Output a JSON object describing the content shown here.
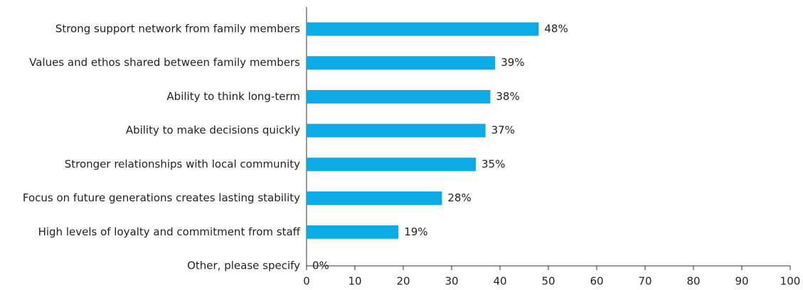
{
  "chart_data": {
    "type": "bar",
    "orientation": "horizontal",
    "categories": [
      "Strong support network from family members",
      "Values and ethos shared between family members",
      "Ability to think long-term",
      "Ability to make decisions quickly",
      "Stronger relationships with local community",
      "Focus on future generations creates lasting stability",
      "High levels of loyalty and commitment from staff",
      "Other, please specify"
    ],
    "values": [
      48,
      39,
      38,
      37,
      35,
      28,
      19,
      0
    ],
    "value_labels": [
      "48%",
      "39%",
      "38%",
      "37%",
      "35%",
      "28%",
      "19%",
      "0%"
    ],
    "color": "#0aaae6",
    "xlim": [
      0,
      100
    ],
    "xticks": [
      0,
      10,
      20,
      30,
      40,
      50,
      60,
      70,
      80,
      90,
      100
    ],
    "grid": false
  }
}
